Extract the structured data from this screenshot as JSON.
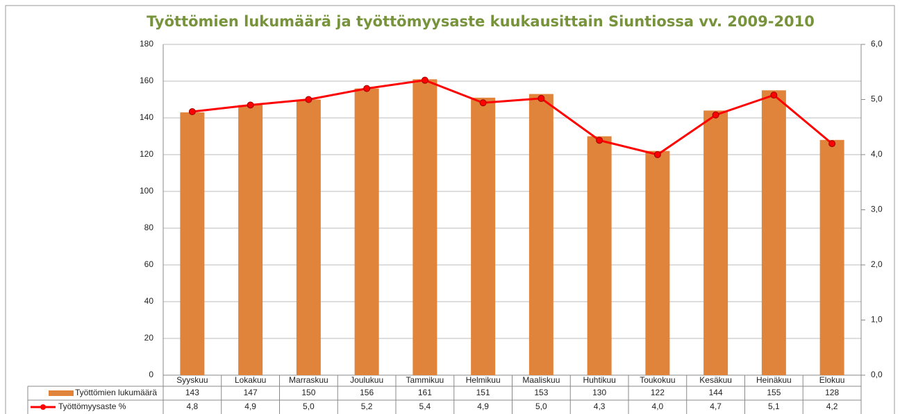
{
  "chart_data": {
    "type": "bar-line",
    "title": "Työttömien lukumäärä ja työttömyysaste kuukausittain Siuntiossa vv. 2009-2010",
    "categories": [
      "Syyskuu",
      "Lokakuu",
      "Marraskuu",
      "Joulukuu",
      "Tammikuu",
      "Helmikuu",
      "Maaliskuu",
      "Huhtikuu",
      "Toukokuu",
      "Kesäkuu",
      "Heinäkuu",
      "Elokuu"
    ],
    "series": [
      {
        "name": "Työttömien lukumäärä",
        "type": "bar",
        "color": "#e0843c",
        "axis": "y",
        "values": [
          143,
          147,
          150,
          156,
          161,
          151,
          153,
          130,
          122,
          144,
          155,
          128
        ]
      },
      {
        "name": "Työttömyysaste %",
        "type": "line",
        "color": "#ff0000",
        "axis": "y2",
        "values": [
          4.78,
          4.9,
          5.0,
          5.2,
          5.35,
          4.94,
          5.02,
          4.26,
          4.0,
          4.72,
          5.08,
          4.2
        ],
        "value_labels": [
          "4,8",
          "4,9",
          "5,0",
          "5,2",
          "5,4",
          "4,9",
          "5,0",
          "4,3",
          "4,0",
          "4,7",
          "5,1",
          "4,2"
        ]
      }
    ],
    "ylim": [
      0,
      180
    ],
    "yticks": [
      0,
      20,
      40,
      60,
      80,
      100,
      120,
      140,
      160,
      180
    ],
    "y2lim": [
      0,
      6
    ],
    "y2ticks": [
      {
        "value": 0,
        "label": "0,0"
      },
      {
        "value": 1,
        "label": "1,0"
      },
      {
        "value": 2,
        "label": "2,0"
      },
      {
        "value": 3,
        "label": "3,0"
      },
      {
        "value": 4,
        "label": "4,0"
      },
      {
        "value": 5,
        "label": "5,0"
      },
      {
        "value": 6,
        "label": "6,0"
      }
    ],
    "grid": true
  }
}
